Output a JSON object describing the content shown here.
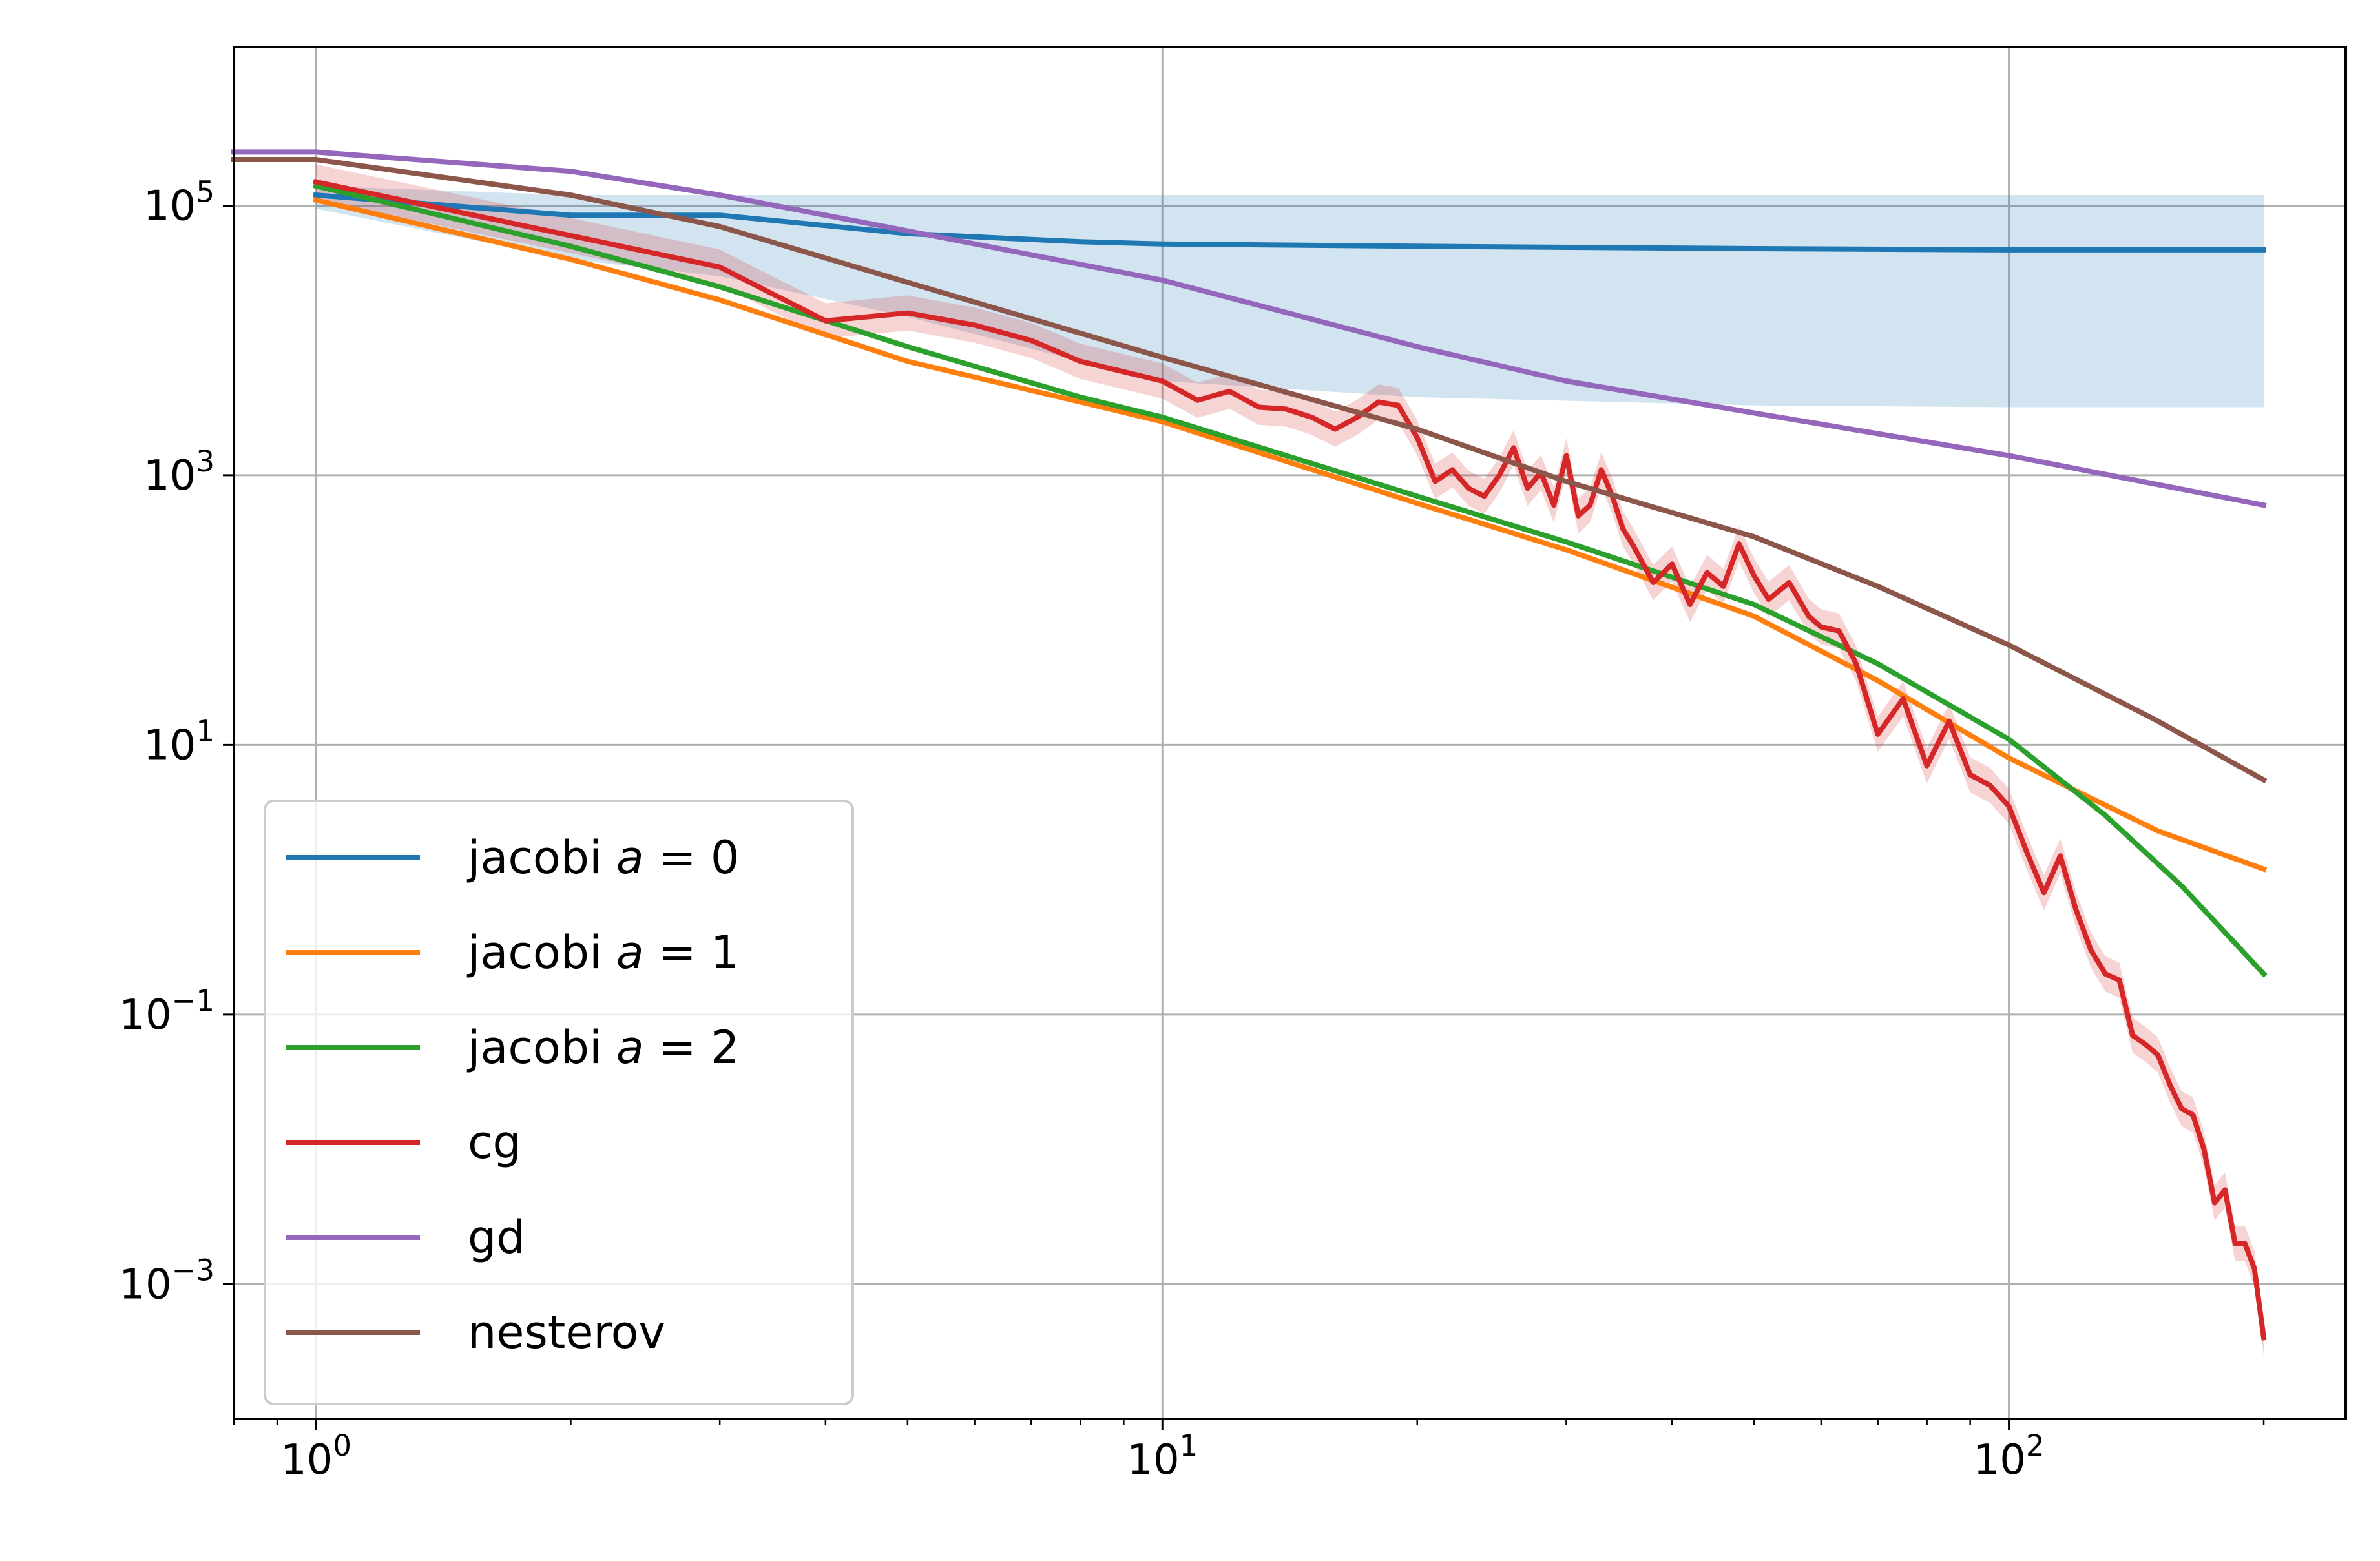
{
  "chart_data": {
    "type": "line",
    "title": "",
    "xlabel": "",
    "ylabel": "",
    "x_scale": "log",
    "y_scale": "log",
    "xlim": [
      0.8,
      250
    ],
    "ylim": [
      0.0001,
      1500000
    ],
    "grid": true,
    "legend_position": "lower-left",
    "x_ticks": [
      {
        "value": 1,
        "base": "10",
        "exp": "0"
      },
      {
        "value": 10,
        "base": "10",
        "exp": "1"
      },
      {
        "value": 100,
        "base": "10",
        "exp": "2"
      }
    ],
    "y_ticks": [
      {
        "value": 100000,
        "base": "10",
        "exp": "5"
      },
      {
        "value": 1000,
        "base": "10",
        "exp": "3"
      },
      {
        "value": 10,
        "base": "10",
        "exp": "1"
      },
      {
        "value": 0.1,
        "base": "10",
        "exp": "−1"
      },
      {
        "value": 0.001,
        "base": "10",
        "exp": "−3"
      }
    ],
    "series": [
      {
        "name": "jacobi a=0",
        "legend": {
          "prefix": "jacobi ",
          "var": "a",
          "suffix": " = 0"
        },
        "color": "#1f77b4",
        "x": [
          1,
          2,
          3,
          5,
          8,
          10,
          20,
          50,
          100,
          200
        ],
        "y": [
          120000,
          85000,
          85000,
          62000,
          54000,
          52000,
          50000,
          48000,
          47000,
          47000
        ],
        "band_low": [
          95000,
          40000,
          30000,
          15000,
          7000,
          5000,
          3800,
          3300,
          3200,
          3200
        ],
        "band_high": [
          140000,
          120000,
          120000,
          120000,
          120000,
          120000,
          120000,
          120000,
          120000,
          120000
        ]
      },
      {
        "name": "jacobi a=1",
        "legend": {
          "prefix": "jacobi ",
          "var": "a",
          "suffix": " = 1"
        },
        "color": "#ff7f0e",
        "x": [
          1,
          2,
          3,
          5,
          8,
          10,
          20,
          30,
          50,
          70,
          100,
          150,
          200
        ],
        "y": [
          110000,
          40000,
          20000,
          7000,
          3500,
          2500,
          620,
          280,
          90,
          30,
          8,
          2.3,
          1.2
        ]
      },
      {
        "name": "jacobi a=2",
        "legend": {
          "prefix": "jacobi ",
          "var": "a",
          "suffix": " = 2"
        },
        "color": "#2ca02c",
        "x": [
          1,
          2,
          3,
          5,
          8,
          10,
          20,
          30,
          50,
          70,
          100,
          130,
          160,
          200
        ],
        "y": [
          140000,
          50000,
          25000,
          9000,
          3800,
          2700,
          700,
          320,
          110,
          40,
          11,
          3,
          0.9,
          0.2
        ]
      },
      {
        "name": "cg",
        "legend": {
          "prefix": "cg",
          "var": "",
          "suffix": ""
        },
        "color": "#d62728",
        "x": [
          1,
          2,
          3,
          4,
          5,
          6,
          7,
          8,
          10,
          11,
          12,
          13,
          14,
          15,
          16,
          17,
          18,
          19,
          20,
          21,
          22,
          23,
          24,
          25,
          26,
          27,
          28,
          29,
          30,
          31,
          32,
          33,
          34,
          35,
          36,
          38,
          40,
          42,
          44,
          46,
          48,
          50,
          52,
          55,
          58,
          60,
          63,
          66,
          70,
          75,
          80,
          85,
          90,
          95,
          100,
          105,
          110,
          115,
          120,
          125,
          130,
          135,
          140,
          145,
          150,
          155,
          160,
          165,
          170,
          175,
          180,
          185,
          190,
          195,
          200
        ],
        "y": [
          150000,
          60000,
          35000,
          14000,
          16000,
          13000,
          10000,
          7000,
          5000,
          3600,
          4200,
          3200,
          3100,
          2700,
          2200,
          2700,
          3500,
          3300,
          1900,
          900,
          1100,
          800,
          700,
          1000,
          1600,
          800,
          1050,
          600,
          1400,
          500,
          600,
          1100,
          700,
          400,
          300,
          160,
          220,
          110,
          190,
          150,
          310,
          180,
          120,
          160,
          90,
          75,
          70,
          40,
          12,
          22,
          7,
          15,
          6,
          5,
          3.5,
          1.6,
          0.8,
          1.5,
          0.6,
          0.3,
          0.2,
          0.18,
          0.07,
          0.06,
          0.05,
          0.03,
          0.02,
          0.018,
          0.01,
          0.004,
          0.005,
          0.002,
          0.002,
          0.0013,
          0.0004
        ],
        "band_rel": 0.35
      },
      {
        "name": "gd",
        "legend": {
          "prefix": "gd",
          "var": "",
          "suffix": ""
        },
        "color": "#9467bd",
        "x": [
          0.8,
          1,
          2,
          3,
          5,
          10,
          20,
          30,
          50,
          100,
          200
        ],
        "y": [
          250000,
          250000,
          180000,
          120000,
          65000,
          28000,
          9000,
          5000,
          2900,
          1400,
          600
        ]
      },
      {
        "name": "nesterov",
        "legend": {
          "prefix": "nesterov",
          "var": "",
          "suffix": ""
        },
        "color": "#8c564b",
        "x": [
          0.8,
          1,
          2,
          3,
          5,
          10,
          20,
          30,
          50,
          70,
          100,
          150,
          200
        ],
        "y": [
          220000,
          220000,
          120000,
          70000,
          27000,
          7500,
          2200,
          900,
          350,
          150,
          55,
          15,
          5.5
        ]
      }
    ]
  }
}
